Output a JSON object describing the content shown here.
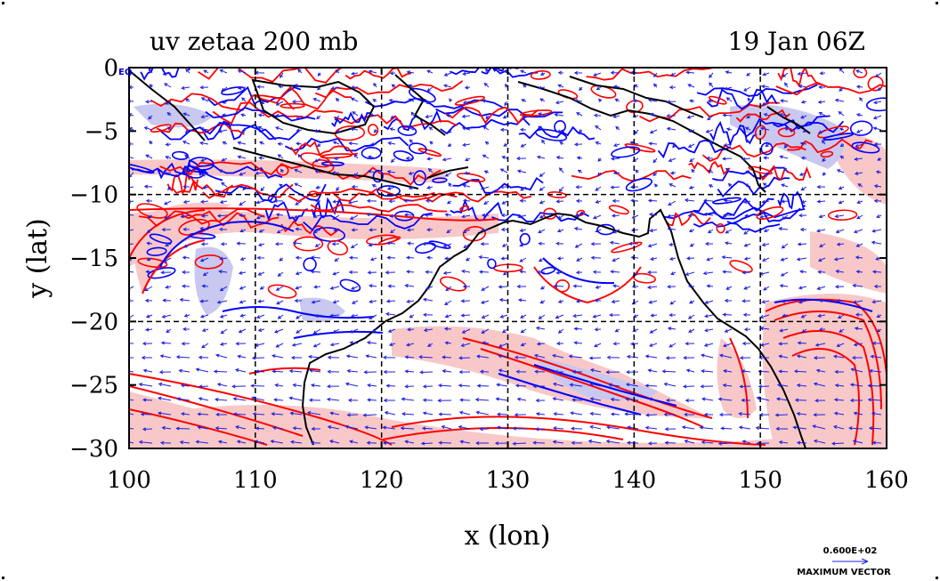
{
  "chart_data": {
    "type": "contour",
    "title_left": "uv zetaa 200 mb",
    "title_right": "19 Jan 06Z",
    "xlabel": "x (lon)",
    "ylabel": "y (lat)",
    "xlim": [
      100,
      160
    ],
    "ylim": [
      -30,
      0
    ],
    "x_ticks": [
      100,
      110,
      120,
      130,
      140,
      150,
      160
    ],
    "y_ticks": [
      0,
      -5,
      -10,
      -15,
      -20,
      -25,
      -30
    ],
    "x_tick_labels": [
      "100",
      "110",
      "120",
      "130",
      "140",
      "150",
      "160"
    ],
    "y_tick_labels": [
      "0",
      "−5",
      "−10",
      "−15",
      "−20",
      "−25",
      "−30"
    ],
    "gridlines_lon": [
      110,
      120,
      130,
      140,
      150
    ],
    "gridlines_lat": [
      -10,
      -20
    ],
    "corner_label": "EQ",
    "vector_key": {
      "value_label": "0.600E+02",
      "caption": "MAXIMUM VECTOR"
    },
    "colors": {
      "positive_contour": "#ff0000",
      "positive_fill": "#f8c8c8",
      "negative_contour": "#0000ff",
      "negative_fill": "#c8c8f0",
      "vectors": "#2020e0",
      "coastline": "#000000"
    }
  }
}
